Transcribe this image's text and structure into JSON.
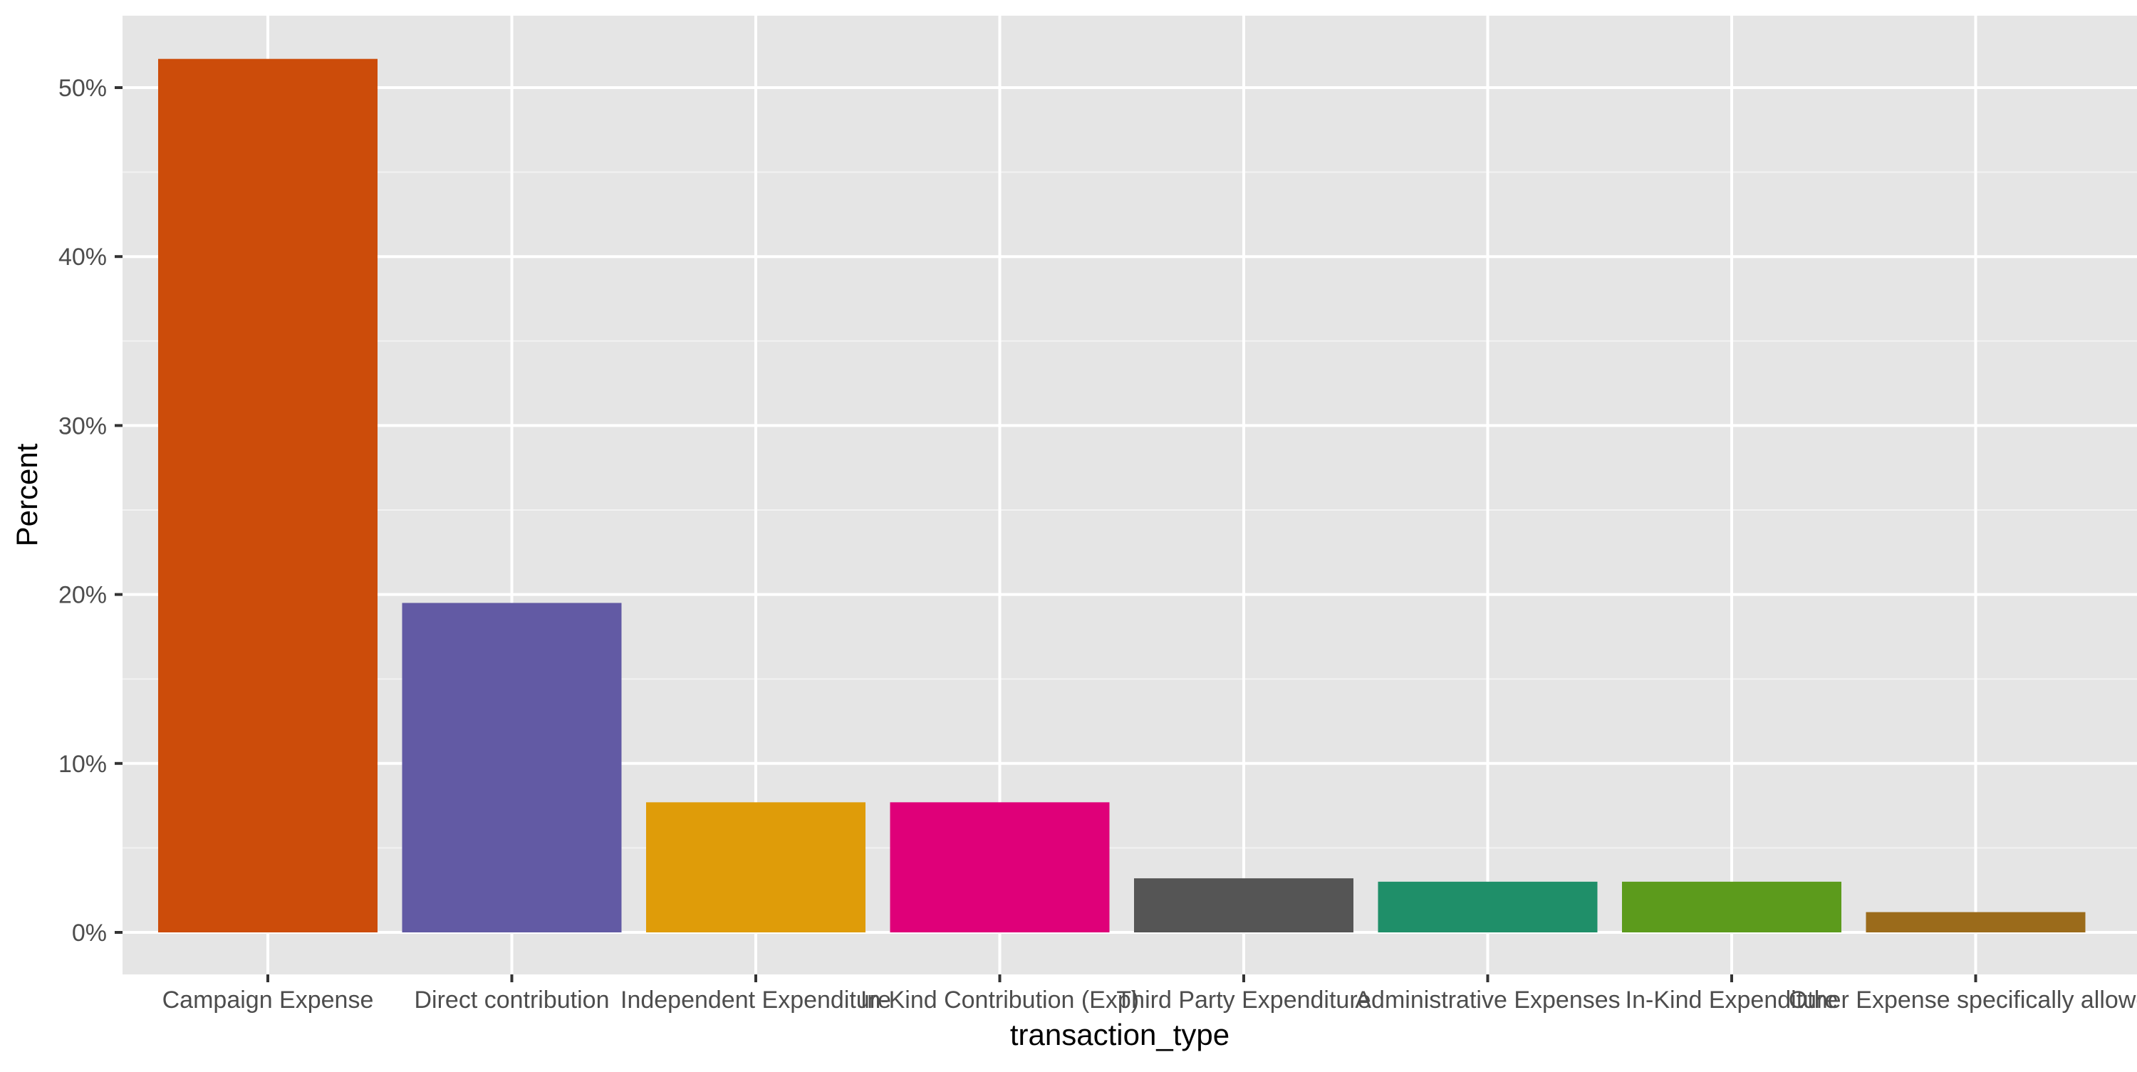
{
  "chart_data": {
    "type": "bar",
    "title": "",
    "xlabel": "transaction_type",
    "ylabel": "Percent",
    "ylim": [
      0,
      55
    ],
    "y_ticks": [
      0,
      10,
      20,
      30,
      40,
      50
    ],
    "y_tick_labels": [
      "0%",
      "10%",
      "20%",
      "30%",
      "40%",
      "50%"
    ],
    "y_unit": "%",
    "grid": true,
    "legend": "none",
    "categories": [
      "Campaign Expense",
      "Direct contribution",
      "Independent Expenditure",
      "In-Kind Contribution (Exp)",
      "Third Party Expenditure",
      "Administrative Expenses",
      "In-Kind Expenditure",
      "Other Expense specifically allowed"
    ],
    "values": [
      51.7,
      19.5,
      7.7,
      7.7,
      3.2,
      3.0,
      3.0,
      1.2
    ],
    "colors": [
      "#cc4c0a",
      "#625aa4",
      "#df9c09",
      "#df0079",
      "#555555",
      "#1f8f69",
      "#5c9b1c",
      "#9b6b1b"
    ]
  }
}
